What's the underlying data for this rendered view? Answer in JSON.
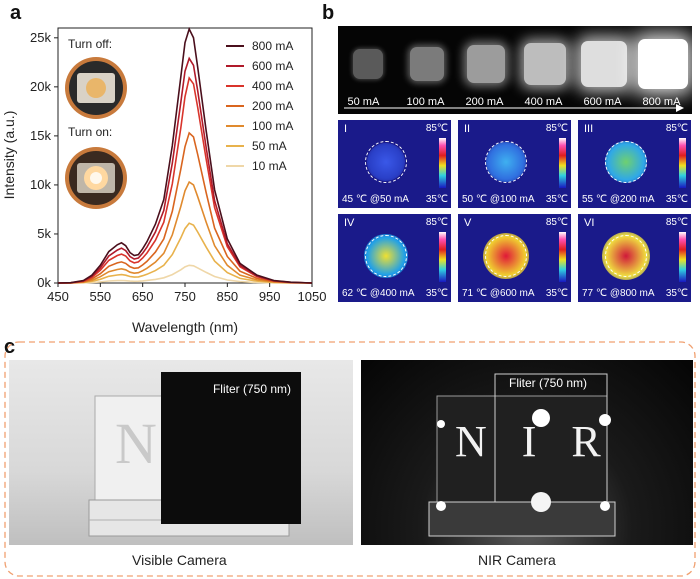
{
  "panels": {
    "a": "a",
    "b": "b",
    "c": "c"
  },
  "chart_data": {
    "type": "line",
    "xlabel": "Wavelength (nm)",
    "ylabel": "Intensity (a.u.)",
    "xlim": [
      450,
      1050
    ],
    "ylim": [
      0,
      26000
    ],
    "xticks": [
      "450",
      "550",
      "650",
      "750",
      "850",
      "950",
      "1050"
    ],
    "yticks": [
      "0k",
      "5k",
      "10k",
      "15k",
      "20k",
      "25k"
    ],
    "x": [
      450,
      480,
      510,
      530,
      550,
      570,
      590,
      600,
      610,
      620,
      630,
      640,
      650,
      660,
      680,
      700,
      720,
      740,
      750,
      760,
      770,
      780,
      800,
      820,
      850,
      880,
      920,
      960,
      1000,
      1050
    ],
    "series": [
      {
        "name": "800 mA",
        "color": "#4a0f1c",
        "values": [
          0,
          30,
          250,
          800,
          1800,
          3200,
          3900,
          4100,
          3800,
          3100,
          2800,
          2900,
          3500,
          4200,
          6000,
          8500,
          14000,
          21000,
          24500,
          25900,
          25000,
          22000,
          15500,
          9500,
          4500,
          2000,
          800,
          250,
          80,
          0
        ]
      },
      {
        "name": "600 mA",
        "color": "#b01a2a",
        "values": [
          0,
          25,
          210,
          680,
          1550,
          2750,
          3350,
          3550,
          3300,
          2700,
          2450,
          2550,
          3050,
          3650,
          5200,
          7400,
          12200,
          18400,
          21600,
          22900,
          22200,
          19600,
          13800,
          8400,
          4000,
          1800,
          700,
          220,
          70,
          0
        ]
      },
      {
        "name": "400 mA",
        "color": "#d9342b",
        "values": [
          0,
          20,
          180,
          580,
          1300,
          2300,
          2800,
          2950,
          2750,
          2250,
          2050,
          2150,
          2550,
          3050,
          4350,
          6200,
          10100,
          15800,
          19000,
          20900,
          20300,
          17900,
          12600,
          7700,
          3700,
          1650,
          650,
          200,
          60,
          0
        ]
      },
      {
        "name": "200 mA",
        "color": "#d9651f",
        "values": [
          0,
          15,
          130,
          420,
          950,
          1700,
          2050,
          2150,
          2000,
          1650,
          1500,
          1550,
          1850,
          2200,
          3150,
          4500,
          7300,
          11600,
          13900,
          15300,
          14900,
          13100,
          9200,
          5600,
          2700,
          1200,
          470,
          150,
          45,
          0
        ]
      },
      {
        "name": "100 mA",
        "color": "#e08a2e",
        "values": [
          0,
          10,
          90,
          280,
          640,
          1150,
          1380,
          1450,
          1350,
          1100,
          1000,
          1050,
          1250,
          1500,
          2120,
          3030,
          4900,
          7800,
          9400,
          10300,
          10000,
          8800,
          6200,
          3800,
          1800,
          800,
          320,
          100,
          30,
          0
        ]
      },
      {
        "name": "50 mA",
        "color": "#e8b24c",
        "values": [
          0,
          6,
          55,
          170,
          380,
          680,
          820,
          860,
          800,
          660,
          600,
          620,
          740,
          890,
          1260,
          1800,
          2900,
          4600,
          5550,
          6100,
          5900,
          5200,
          3650,
          2230,
          1060,
          470,
          190,
          60,
          18,
          0
        ]
      },
      {
        "name": "10 mA",
        "color": "#efd7a8",
        "values": [
          0,
          2,
          16,
          50,
          110,
          200,
          240,
          250,
          235,
          195,
          175,
          180,
          215,
          260,
          370,
          530,
          860,
          1350,
          1640,
          1800,
          1750,
          1540,
          1080,
          660,
          310,
          140,
          55,
          18,
          5,
          0
        ]
      }
    ]
  },
  "inset": {
    "turn_off": "Turn off:",
    "turn_on": "Turn on:"
  },
  "strip": {
    "labels": [
      "50 mA",
      "100 mA",
      "200 mA",
      "400 mA",
      "600 mA",
      "800 mA"
    ]
  },
  "thermal": {
    "max": "85",
    "min": "35",
    "unit": "℃",
    "items": [
      {
        "roman": "I",
        "caption": "45 ℃ @50 mA",
        "core": "#3a58e8",
        "edge": "#2a40c8"
      },
      {
        "roman": "II",
        "caption": "50 ℃ @100 mA",
        "core": "#3fb0f0",
        "edge": "#3070e0"
      },
      {
        "roman": "III",
        "caption": "55 ℃ @200 mA",
        "core": "#6fd070",
        "edge": "#2fa8e8"
      },
      {
        "roman": "IV",
        "caption": "62 ℃ @400 mA",
        "core": "#f0e030",
        "edge": "#20a0e8"
      },
      {
        "roman": "V",
        "caption": "71 ℃ @600 mA",
        "core": "#e01838",
        "edge": "#f0d030"
      },
      {
        "roman": "VI",
        "caption": "77 ℃ @800 mA",
        "core": "#d0183a",
        "edge": "#f0e040"
      }
    ]
  },
  "photos": {
    "filter_label": "Fliter (750 nm)",
    "visible_caption": "Visible Camera",
    "nir_caption": "NIR Camera",
    "visible_letter": "N",
    "nir_letters": "N I R"
  }
}
